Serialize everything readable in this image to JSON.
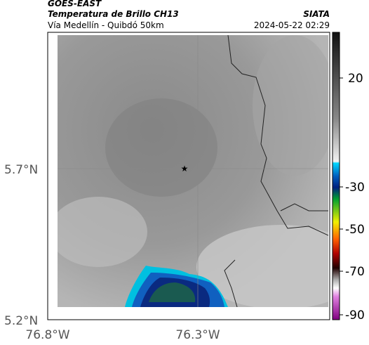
{
  "header": {
    "product": "GOES-EAST",
    "title": "Temperatura de Brillo CH13",
    "subtitle": "Vía Medellín - Quibdó 50km",
    "source": "SIATA",
    "timestamp": "2024-05-22 02:29"
  },
  "axes": {
    "lat_labels": [
      "5.7°N",
      "5.2°N"
    ],
    "lon_labels": [
      "76.8°W",
      "76.3°W"
    ]
  },
  "colorbar": {
    "labels": [
      20,
      -30,
      -50,
      -70,
      -90
    ]
  }
}
